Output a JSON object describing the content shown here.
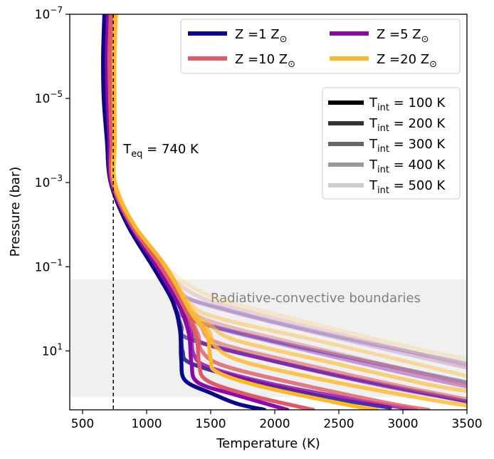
{
  "chart_data": {
    "type": "line",
    "xlabel": "Temperature (K)",
    "ylabel": "Pressure (bar)",
    "xlim": [
      400,
      3500
    ],
    "ylim_log10": [
      2.4,
      -7
    ],
    "y_scale": "log",
    "y_inverted": true,
    "x_ticks": [
      500,
      1000,
      1500,
      2000,
      2500,
      3000,
      3500
    ],
    "y_ticks": [
      {
        "exp": -7,
        "label_base": "10",
        "label_exp": "−7"
      },
      {
        "exp": -5,
        "label_base": "10",
        "label_exp": "−5"
      },
      {
        "exp": -3,
        "label_base": "10",
        "label_exp": "−3"
      },
      {
        "exp": -1,
        "label_base": "10",
        "label_exp": "−1"
      },
      {
        "exp": 1,
        "label_base": "10",
        "label_exp": "1"
      }
    ],
    "teq": {
      "value": 740,
      "label_main": "T",
      "label_sub": "eq",
      "label_rest": " = 740 K"
    },
    "rc_band": {
      "log10_top": -0.7,
      "log10_bottom": 2.1,
      "label": "Radiative-convective boundaries"
    },
    "metallicity_legend": [
      {
        "label_pre": "Z =1 Z",
        "sym": "⊙",
        "color": "#0c0786"
      },
      {
        "label_pre": "Z =5 Z",
        "sym": "⊙",
        "color": "#8b0aa5"
      },
      {
        "label_pre": "Z =10 Z",
        "sym": "⊙",
        "color": "#db5c68"
      },
      {
        "label_pre": "Z =20 Z",
        "sym": "⊙",
        "color": "#feb72d"
      }
    ],
    "tint_legend": [
      {
        "label_main": "T",
        "label_sub": "int",
        "label_rest": " = 100 K",
        "alpha": 1.0
      },
      {
        "label_main": "T",
        "label_sub": "int",
        "label_rest": " = 200 K",
        "alpha": 0.8
      },
      {
        "label_main": "T",
        "label_sub": "int",
        "label_rest": " = 300 K",
        "alpha": 0.6
      },
      {
        "label_main": "T",
        "label_sub": "int",
        "label_rest": " = 400 K",
        "alpha": 0.4
      },
      {
        "label_main": "T",
        "label_sub": "int",
        "label_rest": " = 500 K",
        "alpha": 0.2
      }
    ],
    "series": [
      {
        "metallicity": 1,
        "tint": 100,
        "color": "#0c0786",
        "alpha": 1.0,
        "points": [
          [
            670,
            -7
          ],
          [
            660,
            -6
          ],
          [
            665,
            -5
          ],
          [
            690,
            -4
          ],
          [
            720,
            -3
          ],
          [
            850,
            -2
          ],
          [
            1050,
            -1
          ],
          [
            1200,
            -0.2
          ],
          [
            1260,
            0.5
          ],
          [
            1270,
            1.2
          ],
          [
            1300,
            1.7
          ],
          [
            1500,
            2.0
          ],
          [
            1700,
            2.25
          ],
          [
            1920,
            2.4
          ]
        ]
      },
      {
        "metallicity": 1,
        "tint": 200,
        "color": "#0c0786",
        "alpha": 0.8,
        "points": [
          [
            675,
            -7
          ],
          [
            665,
            -6
          ],
          [
            668,
            -5
          ],
          [
            690,
            -4
          ],
          [
            720,
            -3
          ],
          [
            850,
            -2
          ],
          [
            1050,
            -1
          ],
          [
            1200,
            -0.2
          ],
          [
            1265,
            0.5
          ],
          [
            1280,
            1.0
          ],
          [
            1350,
            1.3
          ],
          [
            1800,
            1.7
          ],
          [
            2400,
            2.1
          ],
          [
            2900,
            2.35
          ]
        ]
      },
      {
        "metallicity": 1,
        "tint": 300,
        "color": "#0c0786",
        "alpha": 0.6,
        "points": [
          [
            680,
            -7
          ],
          [
            670,
            -6
          ],
          [
            670,
            -5
          ],
          [
            692,
            -4
          ],
          [
            722,
            -3
          ],
          [
            850,
            -2
          ],
          [
            1050,
            -1
          ],
          [
            1200,
            -0.2
          ],
          [
            1270,
            0.4
          ],
          [
            1320,
            0.7
          ],
          [
            1800,
            1.1
          ],
          [
            2600,
            1.65
          ],
          [
            3500,
            2.2
          ]
        ]
      },
      {
        "metallicity": 1,
        "tint": 400,
        "color": "#0c0786",
        "alpha": 0.4,
        "points": [
          [
            685,
            -7
          ],
          [
            672,
            -6
          ],
          [
            672,
            -5
          ],
          [
            695,
            -4
          ],
          [
            724,
            -3
          ],
          [
            850,
            -2
          ],
          [
            1050,
            -1
          ],
          [
            1190,
            -0.3
          ],
          [
            1300,
            0.2
          ],
          [
            1900,
            0.7
          ],
          [
            2800,
            1.3
          ],
          [
            3500,
            1.75
          ]
        ]
      },
      {
        "metallicity": 1,
        "tint": 500,
        "color": "#0c0786",
        "alpha": 0.2,
        "points": [
          [
            690,
            -7
          ],
          [
            675,
            -6
          ],
          [
            675,
            -5
          ],
          [
            698,
            -4
          ],
          [
            726,
            -3
          ],
          [
            850,
            -2
          ],
          [
            1050,
            -1
          ],
          [
            1200,
            -0.4
          ],
          [
            1600,
            0.0
          ],
          [
            2400,
            0.6
          ],
          [
            3500,
            1.3
          ]
        ]
      },
      {
        "metallicity": 5,
        "tint": 100,
        "color": "#8b0aa5",
        "alpha": 1.0,
        "points": [
          [
            700,
            -7
          ],
          [
            690,
            -6
          ],
          [
            695,
            -5
          ],
          [
            710,
            -4
          ],
          [
            725,
            -3
          ],
          [
            870,
            -2
          ],
          [
            1080,
            -1
          ],
          [
            1250,
            -0.1
          ],
          [
            1330,
            0.6
          ],
          [
            1350,
            1.3
          ],
          [
            1400,
            1.75
          ],
          [
            1700,
            2.05
          ],
          [
            2100,
            2.4
          ]
        ]
      },
      {
        "metallicity": 5,
        "tint": 200,
        "color": "#8b0aa5",
        "alpha": 0.8,
        "points": [
          [
            705,
            -7
          ],
          [
            695,
            -6
          ],
          [
            698,
            -5
          ],
          [
            712,
            -4
          ],
          [
            727,
            -3
          ],
          [
            870,
            -2
          ],
          [
            1080,
            -1
          ],
          [
            1250,
            -0.1
          ],
          [
            1340,
            0.5
          ],
          [
            1370,
            1.1
          ],
          [
            1500,
            1.4
          ],
          [
            2000,
            1.8
          ],
          [
            2700,
            2.2
          ],
          [
            3100,
            2.4
          ]
        ]
      },
      {
        "metallicity": 5,
        "tint": 300,
        "color": "#8b0aa5",
        "alpha": 0.6,
        "points": [
          [
            710,
            -7
          ],
          [
            698,
            -6
          ],
          [
            700,
            -5
          ],
          [
            715,
            -4
          ],
          [
            729,
            -3
          ],
          [
            870,
            -2
          ],
          [
            1080,
            -1
          ],
          [
            1250,
            -0.1
          ],
          [
            1360,
            0.4
          ],
          [
            1430,
            0.8
          ],
          [
            2000,
            1.25
          ],
          [
            2800,
            1.8
          ],
          [
            3500,
            2.2
          ]
        ]
      },
      {
        "metallicity": 5,
        "tint": 400,
        "color": "#8b0aa5",
        "alpha": 0.4,
        "points": [
          [
            715,
            -7
          ],
          [
            700,
            -6
          ],
          [
            702,
            -5
          ],
          [
            718,
            -4
          ],
          [
            731,
            -3
          ],
          [
            870,
            -2
          ],
          [
            1080,
            -1
          ],
          [
            1240,
            -0.2
          ],
          [
            1400,
            0.3
          ],
          [
            2000,
            0.8
          ],
          [
            2900,
            1.45
          ],
          [
            3500,
            1.85
          ]
        ]
      },
      {
        "metallicity": 5,
        "tint": 500,
        "color": "#8b0aa5",
        "alpha": 0.2,
        "points": [
          [
            720,
            -7
          ],
          [
            705,
            -6
          ],
          [
            705,
            -5
          ],
          [
            720,
            -4
          ],
          [
            733,
            -3
          ],
          [
            870,
            -2
          ],
          [
            1090,
            -1
          ],
          [
            1300,
            -0.3
          ],
          [
            1700,
            0.1
          ],
          [
            2500,
            0.7
          ],
          [
            3500,
            1.4
          ]
        ]
      },
      {
        "metallicity": 10,
        "tint": 100,
        "color": "#db5c68",
        "alpha": 1.0,
        "points": [
          [
            720,
            -7
          ],
          [
            710,
            -6
          ],
          [
            715,
            -5
          ],
          [
            725,
            -4
          ],
          [
            735,
            -3
          ],
          [
            880,
            -2
          ],
          [
            1110,
            -1
          ],
          [
            1300,
            0.0
          ],
          [
            1390,
            0.7
          ],
          [
            1410,
            1.3
          ],
          [
            1470,
            1.7
          ],
          [
            1800,
            2.05
          ],
          [
            2300,
            2.4
          ]
        ]
      },
      {
        "metallicity": 10,
        "tint": 200,
        "color": "#db5c68",
        "alpha": 0.8,
        "points": [
          [
            725,
            -7
          ],
          [
            713,
            -6
          ],
          [
            718,
            -5
          ],
          [
            728,
            -4
          ],
          [
            737,
            -3
          ],
          [
            880,
            -2
          ],
          [
            1110,
            -1
          ],
          [
            1300,
            0.0
          ],
          [
            1400,
            0.6
          ],
          [
            1430,
            1.0
          ],
          [
            1600,
            1.35
          ],
          [
            2200,
            1.8
          ],
          [
            2900,
            2.25
          ],
          [
            3200,
            2.4
          ]
        ]
      },
      {
        "metallicity": 10,
        "tint": 300,
        "color": "#db5c68",
        "alpha": 0.6,
        "points": [
          [
            730,
            -7
          ],
          [
            716,
            -6
          ],
          [
            720,
            -5
          ],
          [
            730,
            -4
          ],
          [
            739,
            -3
          ],
          [
            880,
            -2
          ],
          [
            1110,
            -1
          ],
          [
            1300,
            0.0
          ],
          [
            1420,
            0.4
          ],
          [
            1550,
            0.8
          ],
          [
            2200,
            1.3
          ],
          [
            3000,
            1.85
          ],
          [
            3500,
            2.15
          ]
        ]
      },
      {
        "metallicity": 10,
        "tint": 400,
        "color": "#db5c68",
        "alpha": 0.4,
        "points": [
          [
            735,
            -7
          ],
          [
            719,
            -6
          ],
          [
            722,
            -5
          ],
          [
            732,
            -4
          ],
          [
            741,
            -3
          ],
          [
            880,
            -2
          ],
          [
            1110,
            -1
          ],
          [
            1300,
            -0.1
          ],
          [
            1500,
            0.3
          ],
          [
            2200,
            0.85
          ],
          [
            3100,
            1.5
          ],
          [
            3500,
            1.8
          ]
        ]
      },
      {
        "metallicity": 10,
        "tint": 500,
        "color": "#db5c68",
        "alpha": 0.2,
        "points": [
          [
            740,
            -7
          ],
          [
            722,
            -6
          ],
          [
            725,
            -5
          ],
          [
            735,
            -4
          ],
          [
            743,
            -3
          ],
          [
            890,
            -2
          ],
          [
            1120,
            -1
          ],
          [
            1400,
            -0.3
          ],
          [
            1900,
            0.15
          ],
          [
            2700,
            0.75
          ],
          [
            3500,
            1.35
          ]
        ]
      },
      {
        "metallicity": 20,
        "tint": 100,
        "color": "#feb72d",
        "alpha": 1.0,
        "points": [
          [
            755,
            -7
          ],
          [
            745,
            -6
          ],
          [
            745,
            -5
          ],
          [
            748,
            -4
          ],
          [
            748,
            -3
          ],
          [
            900,
            -2
          ],
          [
            1150,
            -1
          ],
          [
            1350,
            0.1
          ],
          [
            1470,
            0.6
          ],
          [
            1500,
            1.2
          ],
          [
            1550,
            1.5
          ],
          [
            1900,
            1.85
          ],
          [
            2600,
            2.3
          ],
          [
            2800,
            2.4
          ]
        ]
      },
      {
        "metallicity": 20,
        "tint": 200,
        "color": "#feb72d",
        "alpha": 0.8,
        "points": [
          [
            758,
            -7
          ],
          [
            747,
            -6
          ],
          [
            747,
            -5
          ],
          [
            750,
            -4
          ],
          [
            750,
            -3
          ],
          [
            900,
            -2
          ],
          [
            1150,
            -1
          ],
          [
            1350,
            0.1
          ],
          [
            1480,
            0.5
          ],
          [
            1540,
            0.9
          ],
          [
            1750,
            1.25
          ],
          [
            2400,
            1.7
          ],
          [
            3100,
            2.1
          ],
          [
            3500,
            2.3
          ]
        ]
      },
      {
        "metallicity": 20,
        "tint": 300,
        "color": "#feb72d",
        "alpha": 0.6,
        "points": [
          [
            760,
            -7
          ],
          [
            749,
            -6
          ],
          [
            749,
            -5
          ],
          [
            752,
            -4
          ],
          [
            752,
            -3
          ],
          [
            900,
            -2
          ],
          [
            1150,
            -1
          ],
          [
            1350,
            0.0
          ],
          [
            1500,
            0.4
          ],
          [
            1700,
            0.75
          ],
          [
            2400,
            1.25
          ],
          [
            3200,
            1.8
          ],
          [
            3500,
            1.95
          ]
        ]
      },
      {
        "metallicity": 20,
        "tint": 400,
        "color": "#feb72d",
        "alpha": 0.4,
        "points": [
          [
            762,
            -7
          ],
          [
            751,
            -6
          ],
          [
            751,
            -5
          ],
          [
            754,
            -4
          ],
          [
            754,
            -3
          ],
          [
            900,
            -2
          ],
          [
            1150,
            -1
          ],
          [
            1350,
            -0.1
          ],
          [
            1600,
            0.25
          ],
          [
            2400,
            0.8
          ],
          [
            3300,
            1.45
          ],
          [
            3500,
            1.6
          ]
        ]
      },
      {
        "metallicity": 20,
        "tint": 500,
        "color": "#feb72d",
        "alpha": 0.2,
        "points": [
          [
            765,
            -7
          ],
          [
            753,
            -6
          ],
          [
            753,
            -5
          ],
          [
            756,
            -4
          ],
          [
            756,
            -3
          ],
          [
            900,
            -2
          ],
          [
            1150,
            -1
          ],
          [
            1500,
            -0.3
          ],
          [
            2100,
            0.2
          ],
          [
            2900,
            0.8
          ],
          [
            3500,
            1.2
          ]
        ]
      }
    ]
  }
}
